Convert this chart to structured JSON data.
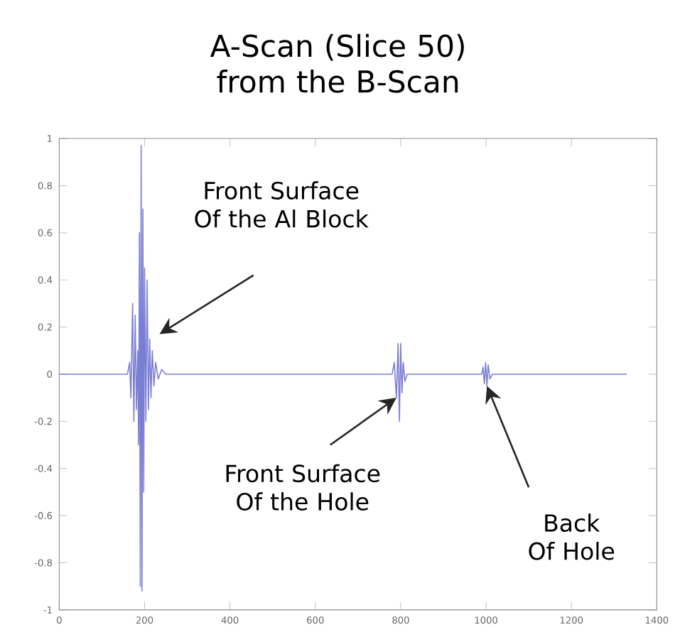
{
  "chart_data": {
    "type": "line",
    "title": "A-Scan (Slice 50) from the B-Scan",
    "xlim": [
      0,
      1400
    ],
    "xticks": [
      0,
      200,
      400,
      600,
      800,
      1000,
      1200,
      1400
    ],
    "ylim": [
      -1,
      1
    ],
    "yticks": [
      -1,
      -0.8,
      -0.6,
      -0.4,
      -0.2,
      0,
      0.2,
      0.4,
      0.6,
      0.8,
      1
    ],
    "grid": false,
    "marker": "none",
    "line_style": "solid",
    "series": [
      {
        "color": "#7b7fd4",
        "x": [
          0,
          160,
          165,
          168,
          172,
          175,
          178,
          181,
          184,
          186,
          188,
          190,
          192,
          194,
          196,
          198,
          200,
          203,
          206,
          209,
          212,
          215,
          218,
          222,
          226,
          232,
          240,
          250,
          780,
          785,
          790,
          794,
          797,
          800,
          803,
          806,
          810,
          815,
          990,
          993,
          996,
          999,
          1002,
          1005,
          1009,
          1015,
          1330
        ],
        "values": [
          0,
          0,
          0.05,
          -0.1,
          0.3,
          -0.2,
          0.25,
          -0.15,
          0.1,
          -0.3,
          0.6,
          -0.9,
          0.97,
          -0.92,
          0.7,
          -0.5,
          0.45,
          -0.2,
          0.4,
          -0.15,
          0.15,
          -0.1,
          0.1,
          -0.05,
          0.05,
          -0.02,
          0.02,
          0,
          0,
          0.05,
          -0.1,
          0.13,
          -0.2,
          0.13,
          -0.08,
          0.05,
          -0.03,
          0,
          0,
          0.03,
          -0.04,
          0.05,
          -0.05,
          0.04,
          -0.02,
          0,
          0
        ]
      }
    ],
    "annotations": [
      "Front Surface Of the Al Block",
      {
        "text": "Front Surface Of the Hole",
        "x": 790,
        "y": -0.1
      },
      {
        "text": "Back Of Hole",
        "x": 1002,
        "y": -0.05
      }
    ]
  }
}
